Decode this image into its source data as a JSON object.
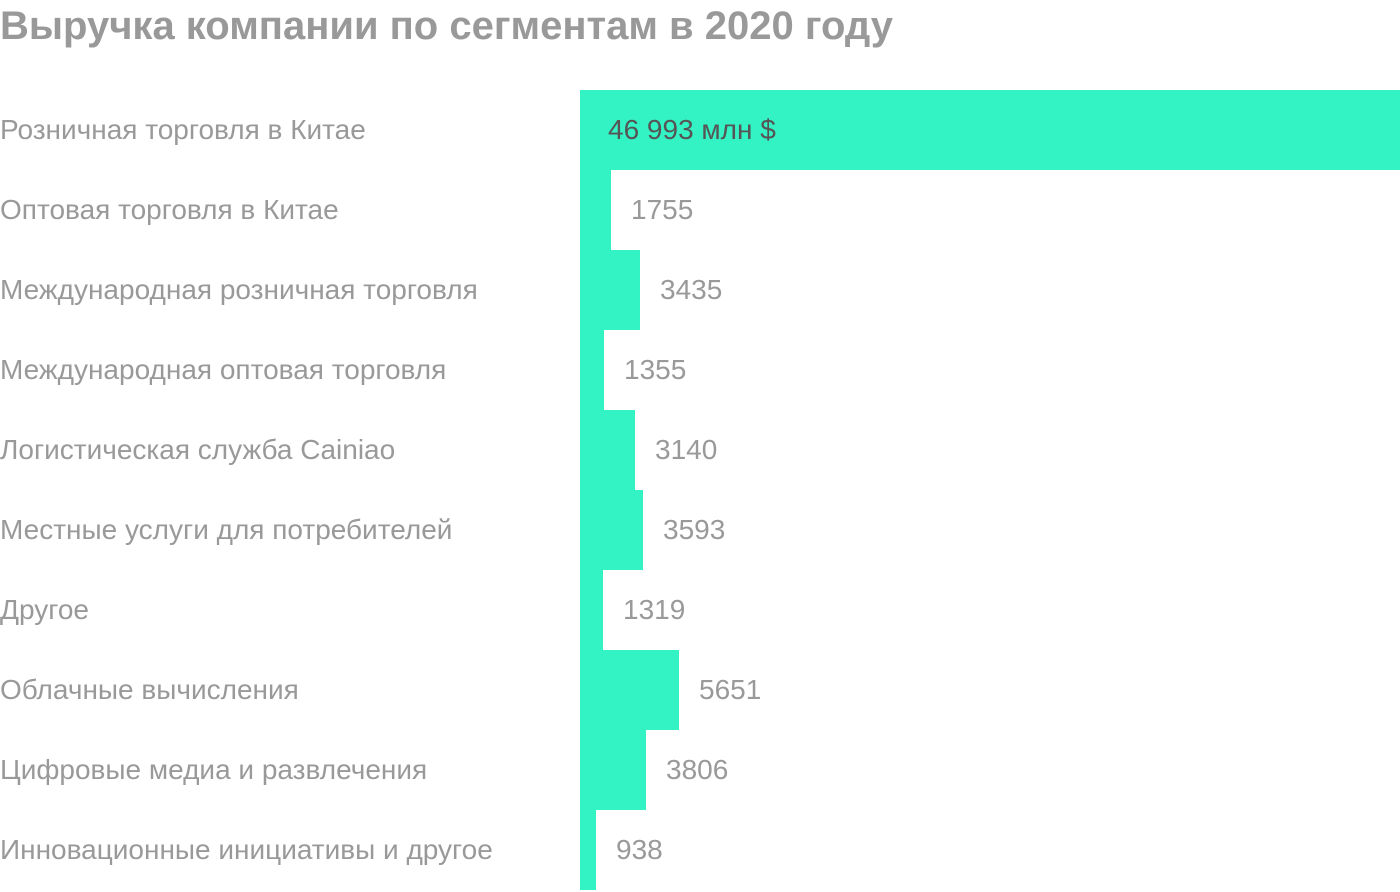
{
  "title": "Выручка компании по сегментам в 2020 году",
  "colors": {
    "bar": "#33f3c5",
    "text": "#999999",
    "inside_text": "#555555"
  },
  "chart_data": {
    "type": "bar",
    "orientation": "horizontal",
    "title": "Выручка компании по сегментам в 2020 году",
    "unit": "млн $",
    "categories": [
      "Розничная торговля в Китае",
      "Оптовая торговля в Китае",
      "Международная розничная торговля",
      "Международная оптовая торговля",
      "Логистическая служба Cainiao",
      "Местные услуги для потребителей",
      "Другое",
      "Облачные вычисления",
      "Цифровые медиа и развлечения",
      "Инновационные инициативы и другое"
    ],
    "values": [
      46993,
      1755,
      3435,
      1355,
      3140,
      3593,
      1319,
      5651,
      3806,
      938
    ],
    "value_labels": [
      "46 993 млн $",
      "1755",
      "3435",
      "1355",
      "3140",
      "3593",
      "1319",
      "5651",
      "3806",
      "938"
    ],
    "xlim": [
      0,
      46993
    ],
    "grid": false,
    "legend": "none"
  }
}
